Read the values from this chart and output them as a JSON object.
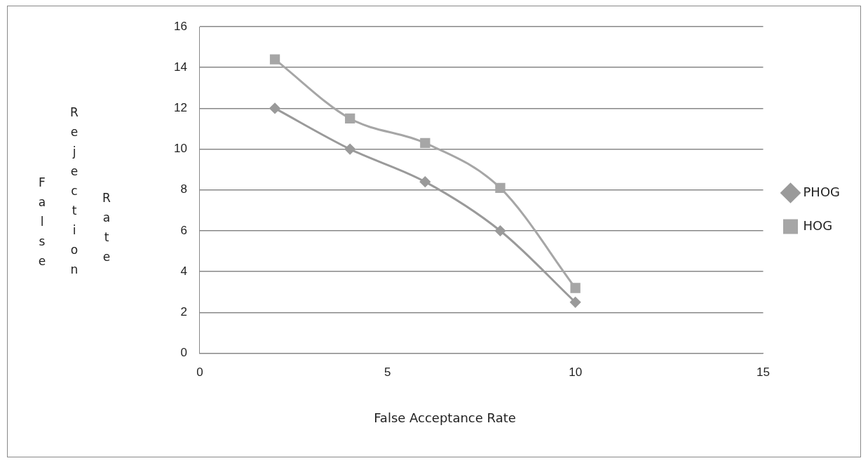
{
  "chart_data": {
    "type": "line",
    "xlabel": "False Acceptance Rate",
    "ylabel": "False Rejection Rate",
    "x": [
      2,
      4,
      6,
      8,
      10
    ],
    "series": [
      {
        "name": "PHOG",
        "color": "#9a9a9a",
        "marker": "diamond",
        "values": [
          12,
          10,
          8.4,
          6,
          2.5
        ]
      },
      {
        "name": "HOG",
        "color": "#a6a6a6",
        "marker": "square",
        "values": [
          14.4,
          11.5,
          10.3,
          8.1,
          3.2
        ]
      }
    ],
    "xlim": [
      0,
      15
    ],
    "xticks": [
      0,
      5,
      10,
      15
    ],
    "ylim": [
      0,
      16
    ],
    "yticks": [
      0,
      2,
      4,
      6,
      8,
      10,
      12,
      14,
      16
    ],
    "grid": "y",
    "legend": "right"
  }
}
